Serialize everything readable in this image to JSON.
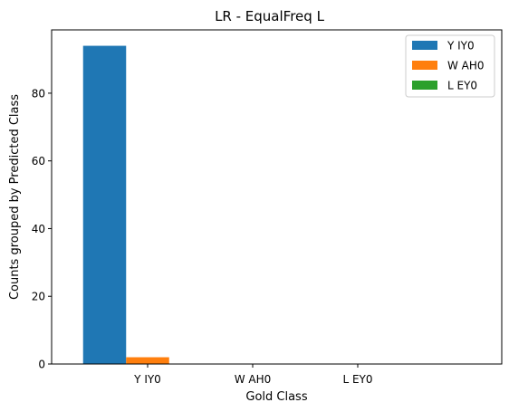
{
  "chart_data": {
    "type": "bar",
    "title": "LR - EqualFreq L",
    "xlabel": "Gold Class",
    "ylabel": "Counts grouped by Predicted Class",
    "categories": [
      "Y IY0",
      "W AH0",
      "L EY0"
    ],
    "series": [
      {
        "name": "Y IY0",
        "color": "#1f77b4",
        "values": [
          94,
          0,
          0
        ]
      },
      {
        "name": "W AH0",
        "color": "#ff7f0e",
        "values": [
          2,
          0,
          0
        ]
      },
      {
        "name": "L EY0",
        "color": "#2ca02c",
        "values": [
          0,
          0,
          0
        ]
      }
    ],
    "yticks": [
      "0",
      "20",
      "40",
      "60",
      "80"
    ],
    "ylim": [
      0,
      98.7
    ],
    "grid": false,
    "legend_position": "top-right"
  }
}
